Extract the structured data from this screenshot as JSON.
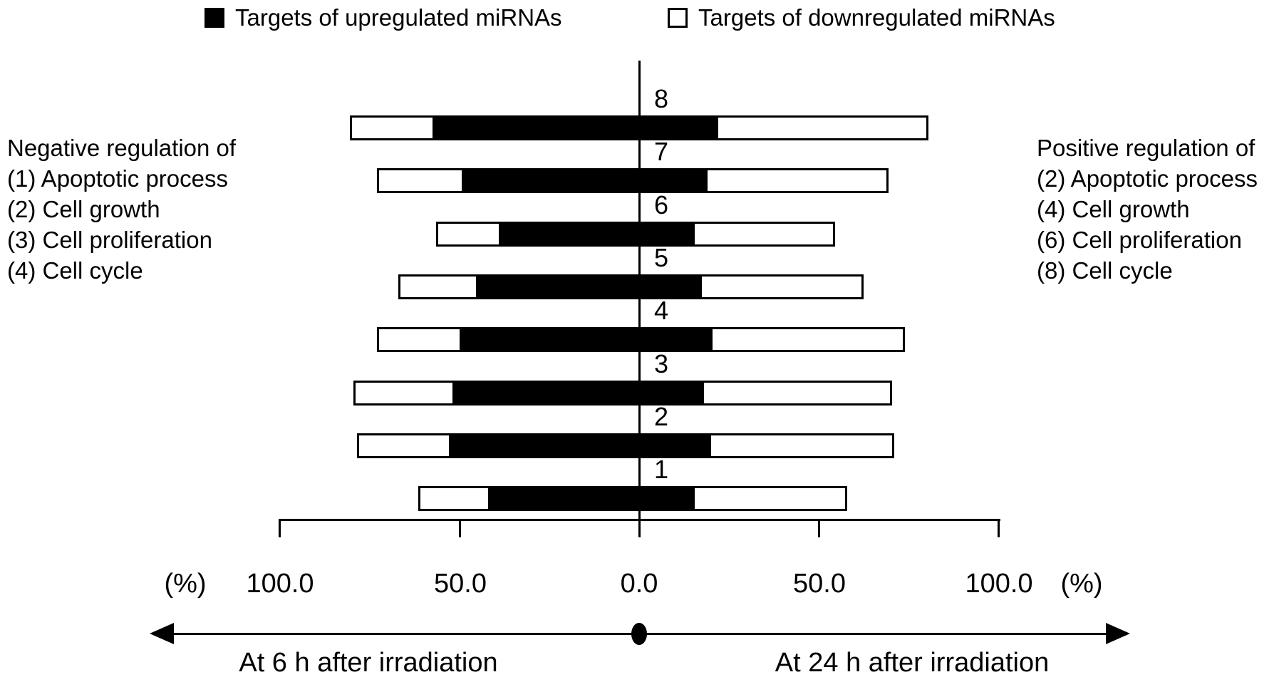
{
  "chart_data": {
    "type": "bar",
    "subtype": "diverging-stacked-horizontal",
    "unit": "percent",
    "title": "",
    "legend": [
      {
        "name": "Targets of upregulated miRNAs",
        "fill": "#000000"
      },
      {
        "name": "Targets of downregulated miRNAs",
        "fill": "#ffffff"
      }
    ],
    "colors": {
      "upregulated": "#000000",
      "downregulated": "#ffffff",
      "stroke": "#000000"
    },
    "axis": {
      "tick_labels": [
        "100.0",
        "50.0",
        "0.0",
        "50.0",
        "100.0"
      ],
      "tick_values": [
        -100,
        -50,
        0,
        50,
        100
      ],
      "unit_label_left": "(%)",
      "unit_label_right": "(%)",
      "direction_left": "At 6 h after irradiation",
      "direction_right": "At 24 h after irradiation",
      "grid": false
    },
    "annotations": {
      "left_lines": [
        "Negative regulation of",
        "(1) Apoptotic process",
        "(2) Cell growth",
        "(3) Cell proliferation",
        "(4) Cell cycle"
      ],
      "right_lines": [
        "Positive regulation of",
        "(2) Apoptotic process",
        "(4) Cell growth",
        "(6) Cell proliferation",
        "(8) Cell cycle"
      ]
    },
    "rows": [
      {
        "label": "8",
        "left_6h": {
          "upregulated": 57.5,
          "downregulated": 23.0
        },
        "right_24h": {
          "upregulated": 22.0,
          "downregulated": 58.5
        }
      },
      {
        "label": "7",
        "left_6h": {
          "upregulated": 49.5,
          "downregulated": 23.5
        },
        "right_24h": {
          "upregulated": 19.0,
          "downregulated": 50.5
        }
      },
      {
        "label": "6",
        "left_6h": {
          "upregulated": 39.0,
          "downregulated": 17.5
        },
        "right_24h": {
          "upregulated": 15.5,
          "downregulated": 39.0
        }
      },
      {
        "label": "5",
        "left_6h": {
          "upregulated": 45.5,
          "downregulated": 21.5
        },
        "right_24h": {
          "upregulated": 17.5,
          "downregulated": 45.0
        }
      },
      {
        "label": "4",
        "left_6h": {
          "upregulated": 50.0,
          "downregulated": 23.0
        },
        "right_24h": {
          "upregulated": 20.5,
          "downregulated": 53.5
        }
      },
      {
        "label": "3",
        "left_6h": {
          "upregulated": 52.0,
          "downregulated": 27.5
        },
        "right_24h": {
          "upregulated": 18.0,
          "downregulated": 52.5
        }
      },
      {
        "label": "2",
        "left_6h": {
          "upregulated": 53.0,
          "downregulated": 25.5
        },
        "right_24h": {
          "upregulated": 20.0,
          "downregulated": 51.0
        }
      },
      {
        "label": "1",
        "left_6h": {
          "upregulated": 42.0,
          "downregulated": 19.5
        },
        "right_24h": {
          "upregulated": 15.5,
          "downregulated": 42.5
        }
      }
    ]
  }
}
